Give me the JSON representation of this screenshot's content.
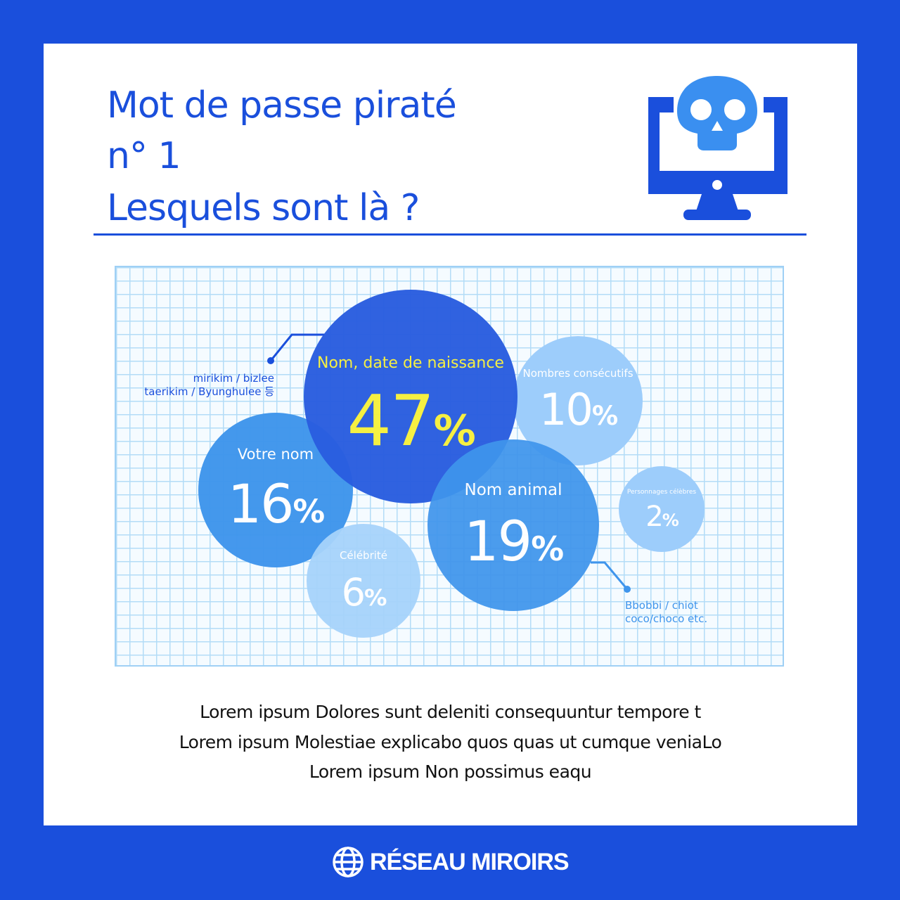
{
  "header": {
    "title_line1": "Mot de passe piraté",
    "title_line2": "n° 1",
    "title_line3": "Lesquels sont là ?",
    "icon": "skull-monitor-icon"
  },
  "chart_data": {
    "type": "bubble",
    "grid": true,
    "bubbles": [
      {
        "label": "Nom, date de naissance",
        "value": 47,
        "display": "47",
        "unit": "%",
        "color": "#2a5ee0",
        "label_color": "#f7f03c"
      },
      {
        "label": "Nombres consécutifs",
        "value": 10,
        "display": "10",
        "unit": "%",
        "color": "#9dcdfb",
        "label_color": "#ffffff"
      },
      {
        "label": "Votre nom",
        "value": 16,
        "display": "16",
        "unit": "%",
        "color": "#3f95ec",
        "label_color": "#ffffff"
      },
      {
        "label": "Nom animal",
        "value": 19,
        "display": "19",
        "unit": "%",
        "color": "#3f95ec",
        "label_color": "#ffffff"
      },
      {
        "label": "Célébrité",
        "value": 6,
        "display": "6",
        "unit": "%",
        "color": "#a6d3fb",
        "label_color": "#ffffff"
      },
      {
        "label": "Personnages célèbres",
        "value": 2,
        "display": "2",
        "unit": "%",
        "color": "#9dcdfb",
        "label_color": "#ffffff"
      }
    ],
    "annotations": [
      {
        "line1": "mirikim / bizlee",
        "line2": "taerikim / Byunghulee 등",
        "color": "#1a4fdc"
      },
      {
        "line1": "Bbobbi / chiot",
        "line2": "coco/choco etc.",
        "color": "#3f95ec"
      }
    ]
  },
  "body_text": [
    "Lorem ipsum Dolores sunt deleniti consequuntur tempore t",
    "Lorem ipsum Molestiae explicabo quos quas ut cumque veniaLo",
    "Lorem ipsum Non possimus eaqu"
  ],
  "footer": {
    "brand": "RÉSEAU MIROIRS",
    "icon": "globe-icon"
  }
}
